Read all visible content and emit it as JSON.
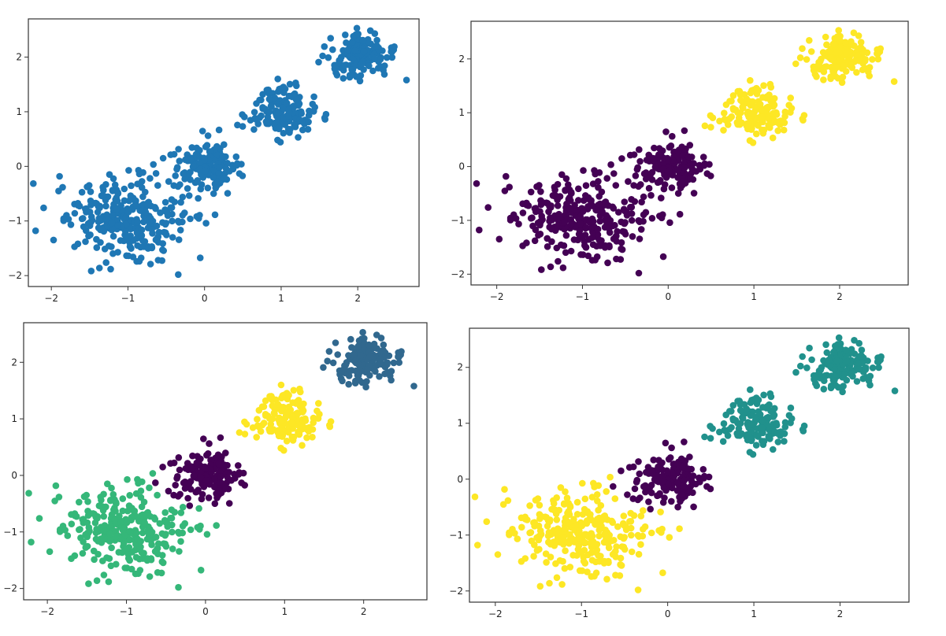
{
  "chart_data": [
    {
      "type": "scatter",
      "title": "",
      "xlabel": "",
      "ylabel": "",
      "xlim": [
        -2.3,
        2.8
      ],
      "ylim": [
        -2.2,
        2.7
      ],
      "xticks": [
        -2,
        -1,
        0,
        1,
        2
      ],
      "yticks": [
        -2,
        -1,
        0,
        1,
        2
      ],
      "xtick_labels": [
        "−2",
        "−1",
        "0",
        "1",
        "2"
      ],
      "ytick_labels": [
        "−2",
        "−1",
        "0",
        "1",
        "2"
      ],
      "grid": false,
      "legend": "none",
      "coloring": "single color (all points)",
      "clusters": [
        {
          "center": [
            2.0,
            2.0
          ],
          "spread": 0.22,
          "n": 150,
          "color": "#1f77b4"
        },
        {
          "center": [
            1.0,
            1.0
          ],
          "spread": 0.22,
          "n": 150,
          "color": "#1f77b4"
        },
        {
          "center": [
            0.0,
            0.0
          ],
          "spread": 0.22,
          "n": 150,
          "color": "#1f77b4"
        },
        {
          "center": [
            -1.0,
            -1.0
          ],
          "spread": 0.4,
          "n": 300,
          "color": "#1f77b4"
        }
      ]
    },
    {
      "type": "scatter",
      "title": "",
      "xlabel": "",
      "ylabel": "",
      "xlim": [
        -2.3,
        2.8
      ],
      "ylim": [
        -2.2,
        2.7
      ],
      "xticks": [
        -2,
        -1,
        0,
        1,
        2
      ],
      "yticks": [
        -2,
        -1,
        0,
        1,
        2
      ],
      "xtick_labels": [
        "−2",
        "−1",
        "0",
        "1",
        "2"
      ],
      "ytick_labels": [
        "−2",
        "−1",
        "0",
        "1",
        "2"
      ],
      "grid": false,
      "legend": "none",
      "coloring": "2 clusters",
      "clusters": [
        {
          "center": [
            2.0,
            2.0
          ],
          "spread": 0.22,
          "n": 150,
          "color": "#fde725"
        },
        {
          "center": [
            1.0,
            1.0
          ],
          "spread": 0.22,
          "n": 150,
          "color": "#fde725"
        },
        {
          "center": [
            0.0,
            0.0
          ],
          "spread": 0.22,
          "n": 150,
          "color": "#440154"
        },
        {
          "center": [
            -1.0,
            -1.0
          ],
          "spread": 0.4,
          "n": 300,
          "color": "#440154"
        }
      ]
    },
    {
      "type": "scatter",
      "title": "",
      "xlabel": "",
      "ylabel": "",
      "xlim": [
        -2.3,
        2.8
      ],
      "ylim": [
        -2.2,
        2.7
      ],
      "xticks": [
        -2,
        -1,
        0,
        1,
        2
      ],
      "yticks": [
        -2,
        -1,
        0,
        1,
        2
      ],
      "xtick_labels": [
        "−2",
        "−1",
        "0",
        "1",
        "2"
      ],
      "ytick_labels": [
        "−2",
        "−1",
        "0",
        "1",
        "2"
      ],
      "grid": false,
      "legend": "none",
      "coloring": "4 clusters",
      "clusters": [
        {
          "center": [
            2.0,
            2.0
          ],
          "spread": 0.22,
          "n": 150,
          "color": "#31688e"
        },
        {
          "center": [
            1.0,
            1.0
          ],
          "spread": 0.22,
          "n": 150,
          "color": "#fde725"
        },
        {
          "center": [
            0.0,
            0.0
          ],
          "spread": 0.22,
          "n": 150,
          "color": "#440154"
        },
        {
          "center": [
            -1.0,
            -1.0
          ],
          "spread": 0.4,
          "n": 300,
          "color": "#35b779"
        }
      ]
    },
    {
      "type": "scatter",
      "title": "",
      "xlabel": "",
      "ylabel": "",
      "xlim": [
        -2.3,
        2.8
      ],
      "ylim": [
        -2.2,
        2.7
      ],
      "xticks": [
        -2,
        -1,
        0,
        1,
        2
      ],
      "yticks": [
        -2,
        -1,
        0,
        1,
        2
      ],
      "xtick_labels": [
        "−2",
        "−1",
        "0",
        "1",
        "2"
      ],
      "ytick_labels": [
        "−2",
        "−1",
        "0",
        "1",
        "2"
      ],
      "grid": false,
      "legend": "none",
      "coloring": "3 clusters",
      "clusters": [
        {
          "center": [
            2.0,
            2.0
          ],
          "spread": 0.22,
          "n": 150,
          "color": "#21918c"
        },
        {
          "center": [
            1.0,
            1.0
          ],
          "spread": 0.22,
          "n": 150,
          "color": "#21918c"
        },
        {
          "center": [
            0.0,
            0.0
          ],
          "spread": 0.22,
          "n": 150,
          "color": "#440154"
        },
        {
          "center": [
            -1.0,
            -1.0
          ],
          "spread": 0.4,
          "n": 300,
          "color": "#fde725"
        }
      ]
    }
  ]
}
